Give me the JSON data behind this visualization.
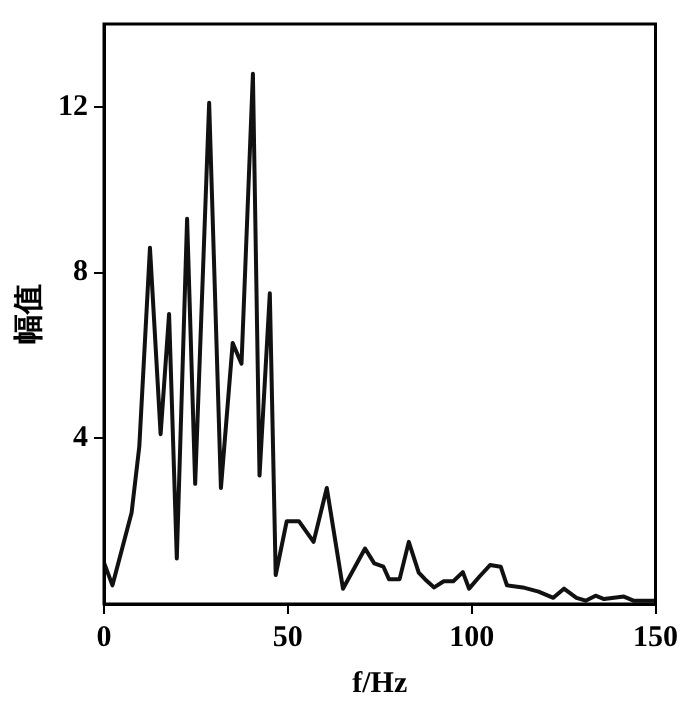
{
  "chart_data": {
    "type": "line",
    "xlabel": "f/Hz",
    "ylabel": "幅值",
    "x": [
      0,
      2.3,
      7.5,
      9.6,
      12.5,
      15.4,
      17.7,
      19.8,
      22.6,
      24.8,
      28.6,
      31.8,
      35,
      37.4,
      40.5,
      42.3,
      45.1,
      46.7,
      49.7,
      53,
      57,
      60.6,
      65,
      71,
      73.5,
      76,
      77.5,
      80.4,
      82.9,
      85.6,
      87.3,
      89.8,
      92.4,
      95,
      97.6,
      99.3,
      102.2,
      105,
      107.9,
      109.6,
      113.9,
      118.2,
      122.2,
      125.1,
      128.5,
      131,
      133.7,
      136,
      141.4,
      144,
      150
    ],
    "series": [
      {
        "color": "#111111",
        "values": [
          1.0,
          0.45,
          2.2,
          3.8,
          8.6,
          4.1,
          7.0,
          1.1,
          9.3,
          2.9,
          12.1,
          2.8,
          6.3,
          5.8,
          12.8,
          3.1,
          7.5,
          0.7,
          2.0,
          2.0,
          1.5,
          2.8,
          0.37,
          1.34,
          0.98,
          0.9,
          0.6,
          0.6,
          1.5,
          0.76,
          0.6,
          0.4,
          0.55,
          0.55,
          0.77,
          0.37,
          0.67,
          0.94,
          0.9,
          0.45,
          0.4,
          0.3,
          0.15,
          0.37,
          0.15,
          0.08,
          0.2,
          0.12,
          0.18,
          0.08,
          0.08
        ]
      }
    ],
    "xlim": [
      0,
      150
    ],
    "xticks": [
      0,
      50,
      100,
      150
    ],
    "ylim": [
      0,
      14
    ],
    "yticks": [
      4,
      8,
      12
    ],
    "grid": false,
    "legend": false,
    "marker": "none",
    "line_style": "solid"
  }
}
